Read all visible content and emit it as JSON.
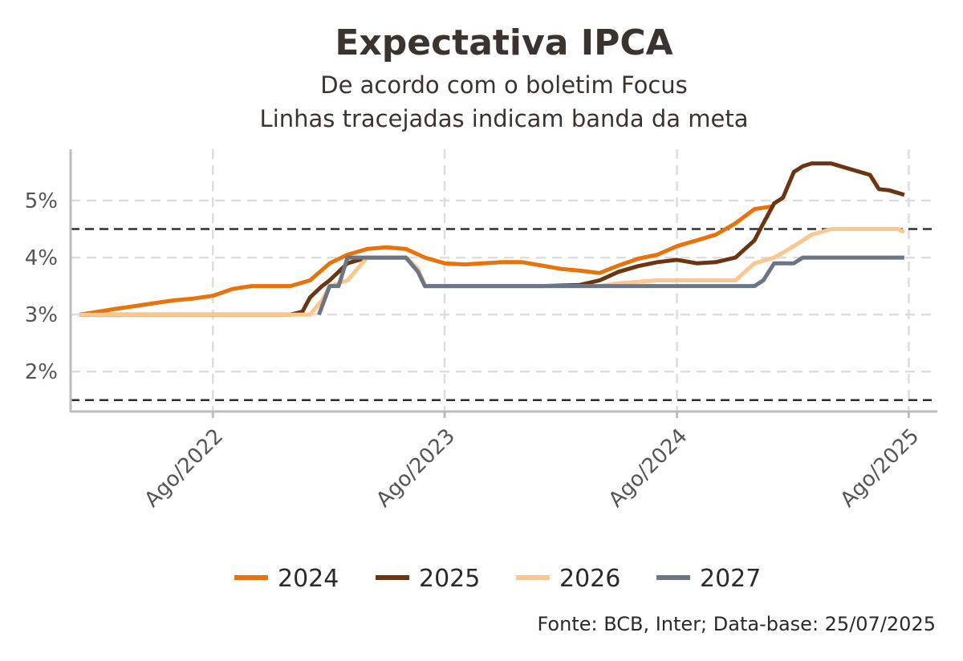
{
  "chart_data": {
    "type": "line",
    "title": "Expectativa IPCA",
    "subtitle_lines": [
      "De acordo com o boletim Focus",
      "Linhas tracejadas indicam banda da meta"
    ],
    "caption": "Fonte: BCB, Inter; Data-base: 25/07/2025",
    "xlabel": "",
    "ylabel": "",
    "x_range": [
      "2021-12-20",
      "2025-09-15"
    ],
    "x_ticks": [
      {
        "date": "2022-08-01",
        "label": "Ago/2022"
      },
      {
        "date": "2023-08-01",
        "label": "Ago/2023"
      },
      {
        "date": "2024-08-01",
        "label": "Ago/2024"
      },
      {
        "date": "2025-08-01",
        "label": "Ago/2025"
      }
    ],
    "ylim": [
      1.3,
      5.9
    ],
    "y_ticks": [
      {
        "value": 2,
        "label": "2%"
      },
      {
        "value": 3,
        "label": "3%"
      },
      {
        "value": 4,
        "label": "4%"
      },
      {
        "value": 5,
        "label": "5%"
      }
    ],
    "grid": true,
    "target_band": [
      1.5,
      4.5
    ],
    "legend_position": "bottom",
    "series": [
      {
        "name": "2024",
        "color": "#E8730C",
        "points": [
          [
            "2022-01-03",
            3.0
          ],
          [
            "2022-02-01",
            3.05
          ],
          [
            "2022-03-01",
            3.1
          ],
          [
            "2022-04-01",
            3.15
          ],
          [
            "2022-05-01",
            3.2
          ],
          [
            "2022-06-01",
            3.25
          ],
          [
            "2022-07-01",
            3.28
          ],
          [
            "2022-08-01",
            3.33
          ],
          [
            "2022-09-01",
            3.45
          ],
          [
            "2022-10-01",
            3.5
          ],
          [
            "2022-11-01",
            3.5
          ],
          [
            "2022-12-01",
            3.5
          ],
          [
            "2023-01-01",
            3.6
          ],
          [
            "2023-02-01",
            3.9
          ],
          [
            "2023-03-01",
            4.05
          ],
          [
            "2023-04-01",
            4.15
          ],
          [
            "2023-05-01",
            4.18
          ],
          [
            "2023-06-01",
            4.15
          ],
          [
            "2023-07-01",
            4.0
          ],
          [
            "2023-08-01",
            3.9
          ],
          [
            "2023-09-01",
            3.88
          ],
          [
            "2023-10-01",
            3.9
          ],
          [
            "2023-11-01",
            3.92
          ],
          [
            "2023-12-01",
            3.92
          ],
          [
            "2024-01-01",
            3.86
          ],
          [
            "2024-02-01",
            3.8
          ],
          [
            "2024-03-01",
            3.77
          ],
          [
            "2024-04-01",
            3.73
          ],
          [
            "2024-05-01",
            3.86
          ],
          [
            "2024-06-01",
            3.98
          ],
          [
            "2024-07-01",
            4.05
          ],
          [
            "2024-08-01",
            4.2
          ],
          [
            "2024-09-01",
            4.3
          ],
          [
            "2024-10-01",
            4.4
          ],
          [
            "2024-11-01",
            4.6
          ],
          [
            "2024-12-01",
            4.85
          ],
          [
            "2024-12-31",
            4.9
          ]
        ]
      },
      {
        "name": "2025",
        "color": "#6B3512",
        "points": [
          [
            "2022-01-03",
            3.0
          ],
          [
            "2022-06-01",
            3.0
          ],
          [
            "2022-12-01",
            3.0
          ],
          [
            "2022-12-20",
            3.05
          ],
          [
            "2023-01-01",
            3.3
          ],
          [
            "2023-01-20",
            3.5
          ],
          [
            "2023-02-01",
            3.6
          ],
          [
            "2023-03-01",
            3.9
          ],
          [
            "2023-04-01",
            4.0
          ],
          [
            "2023-05-01",
            4.0
          ],
          [
            "2023-06-01",
            4.0
          ],
          [
            "2023-06-20",
            3.8
          ],
          [
            "2023-07-01",
            3.5
          ],
          [
            "2023-09-01",
            3.5
          ],
          [
            "2023-11-01",
            3.5
          ],
          [
            "2024-01-01",
            3.5
          ],
          [
            "2024-03-01",
            3.52
          ],
          [
            "2024-04-01",
            3.6
          ],
          [
            "2024-05-01",
            3.75
          ],
          [
            "2024-06-01",
            3.85
          ],
          [
            "2024-07-01",
            3.92
          ],
          [
            "2024-08-01",
            3.96
          ],
          [
            "2024-09-01",
            3.9
          ],
          [
            "2024-10-01",
            3.92
          ],
          [
            "2024-11-01",
            4.0
          ],
          [
            "2024-12-01",
            4.3
          ],
          [
            "2024-12-15",
            4.6
          ],
          [
            "2025-01-01",
            4.95
          ],
          [
            "2025-01-15",
            5.05
          ],
          [
            "2025-02-01",
            5.5
          ],
          [
            "2025-02-15",
            5.6
          ],
          [
            "2025-03-01",
            5.65
          ],
          [
            "2025-04-01",
            5.65
          ],
          [
            "2025-05-01",
            5.55
          ],
          [
            "2025-06-01",
            5.45
          ],
          [
            "2025-06-15",
            5.2
          ],
          [
            "2025-07-01",
            5.18
          ],
          [
            "2025-07-25",
            5.1
          ]
        ]
      },
      {
        "name": "2026",
        "color": "#FDC68E",
        "points": [
          [
            "2022-01-03",
            3.0
          ],
          [
            "2022-12-01",
            3.0
          ],
          [
            "2023-01-01",
            3.0
          ],
          [
            "2023-01-20",
            3.25
          ],
          [
            "2023-02-01",
            3.5
          ],
          [
            "2023-03-01",
            3.6
          ],
          [
            "2023-04-01",
            4.0
          ],
          [
            "2023-05-01",
            4.0
          ],
          [
            "2023-06-01",
            4.0
          ],
          [
            "2023-06-20",
            3.8
          ],
          [
            "2023-07-01",
            3.5
          ],
          [
            "2024-01-01",
            3.5
          ],
          [
            "2024-04-01",
            3.5
          ],
          [
            "2024-05-01",
            3.55
          ],
          [
            "2024-07-01",
            3.6
          ],
          [
            "2024-10-01",
            3.6
          ],
          [
            "2024-11-01",
            3.6
          ],
          [
            "2024-12-01",
            3.9
          ],
          [
            "2025-01-01",
            4.0
          ],
          [
            "2025-02-01",
            4.2
          ],
          [
            "2025-03-01",
            4.4
          ],
          [
            "2025-04-01",
            4.5
          ],
          [
            "2025-06-01",
            4.5
          ],
          [
            "2025-07-15",
            4.5
          ],
          [
            "2025-07-25",
            4.45
          ]
        ]
      },
      {
        "name": "2027",
        "color": "#6B7585",
        "points": [
          [
            "2023-01-15",
            3.0
          ],
          [
            "2023-02-01",
            3.5
          ],
          [
            "2023-02-15",
            3.5
          ],
          [
            "2023-03-01",
            4.0
          ],
          [
            "2023-06-01",
            4.0
          ],
          [
            "2023-06-20",
            3.75
          ],
          [
            "2023-07-01",
            3.5
          ],
          [
            "2024-01-01",
            3.5
          ],
          [
            "2024-07-01",
            3.5
          ],
          [
            "2024-12-01",
            3.5
          ],
          [
            "2024-12-15",
            3.6
          ],
          [
            "2025-01-01",
            3.9
          ],
          [
            "2025-02-01",
            3.9
          ],
          [
            "2025-02-15",
            4.0
          ],
          [
            "2025-07-25",
            4.0
          ]
        ]
      }
    ]
  }
}
